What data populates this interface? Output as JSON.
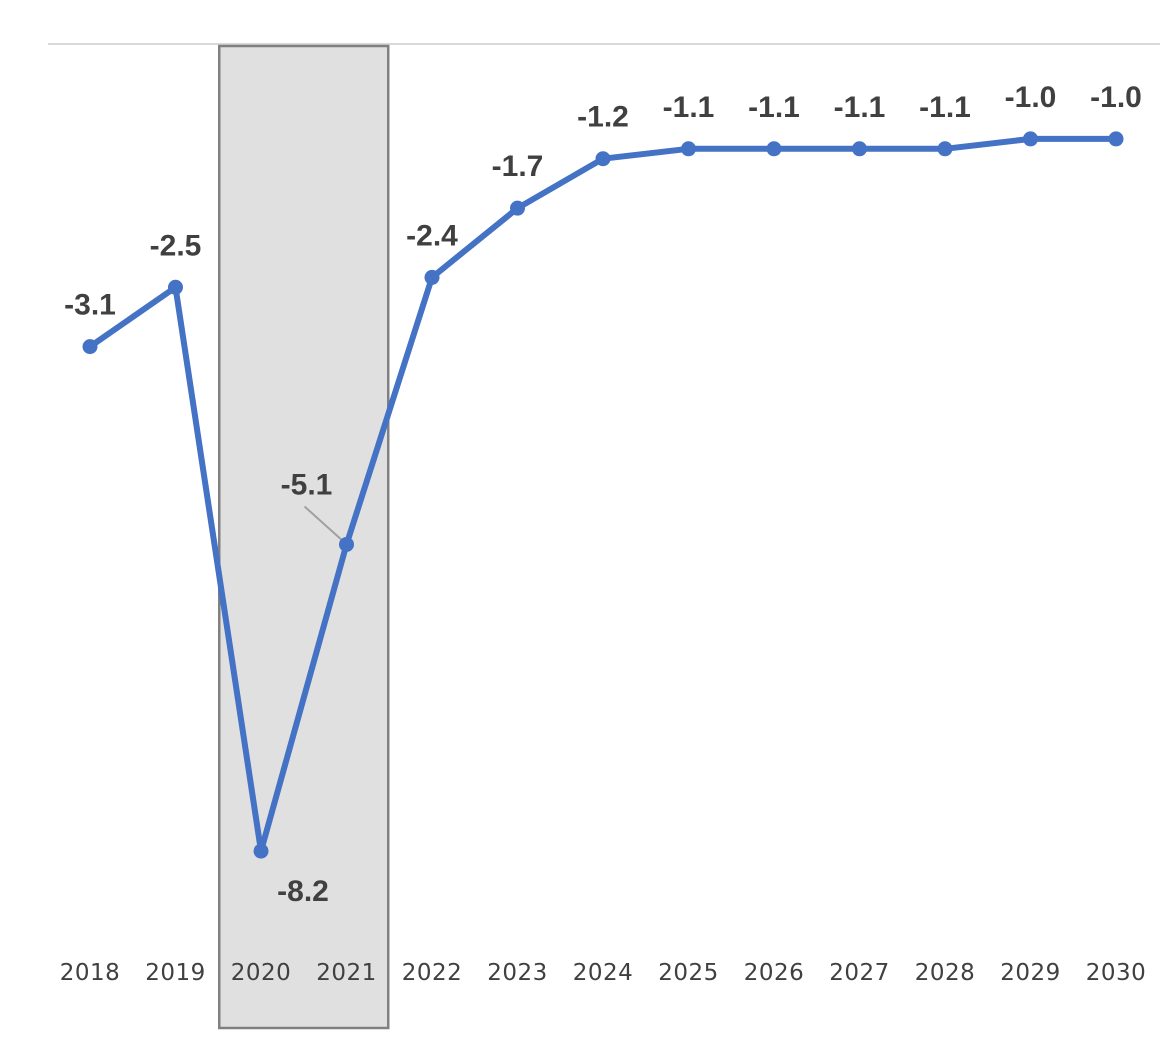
{
  "chart_data": {
    "type": "line",
    "categories": [
      "2018",
      "2019",
      "2020",
      "2021",
      "2022",
      "2023",
      "2024",
      "2025",
      "2026",
      "2027",
      "2028",
      "2029",
      "2030"
    ],
    "series": [
      {
        "values": [
          -3.1,
          -2.5,
          -8.2,
          -5.1,
          -2.4,
          -1.7,
          -1.2,
          -1.1,
          -1.1,
          -1.1,
          -1.1,
          -1.0,
          -1.0
        ],
        "color": "#4472c4"
      }
    ],
    "data_labels": [
      "-3.1",
      "-2.5",
      "-8.2",
      "-5.1",
      "-2.4",
      "-1.7",
      "-1.2",
      "-1.1",
      "-1.1",
      "-1.1",
      "-1.1",
      "-1.0",
      "-1.0"
    ],
    "highlight_range": [
      "2020",
      "2021"
    ],
    "ylim": [
      -9.2,
      0
    ],
    "title": "",
    "xlabel": "",
    "ylabel": "",
    "grid": false,
    "legend": "none"
  }
}
